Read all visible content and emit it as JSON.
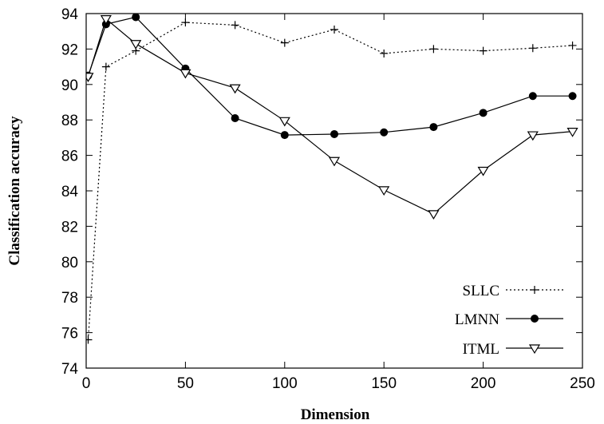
{
  "chart_data": {
    "type": "line",
    "title": "",
    "xlabel": "Dimension",
    "ylabel": "Classification accuracy",
    "xlim": [
      0,
      250
    ],
    "ylim": [
      74,
      94
    ],
    "xticks": [
      0,
      50,
      100,
      150,
      200,
      250
    ],
    "yticks": [
      74,
      76,
      78,
      80,
      82,
      84,
      86,
      88,
      90,
      92,
      94
    ],
    "grid": false,
    "legend_position": "bottom-right",
    "series": [
      {
        "name": "SLLC",
        "style": "dotted",
        "marker": "plus",
        "x": [
          1,
          10,
          25,
          50,
          75,
          100,
          125,
          150,
          175,
          200,
          225,
          245
        ],
        "y": [
          75.6,
          91.0,
          91.9,
          93.5,
          93.35,
          92.35,
          93.1,
          91.75,
          92.0,
          91.9,
          92.05,
          92.2
        ]
      },
      {
        "name": "LMNN",
        "style": "solid",
        "marker": "filled-circle",
        "x": [
          1,
          10,
          25,
          50,
          75,
          100,
          125,
          150,
          175,
          200,
          225,
          245
        ],
        "y": [
          90.5,
          93.4,
          93.8,
          90.9,
          88.1,
          87.15,
          87.2,
          87.3,
          87.6,
          88.4,
          89.35,
          89.35
        ]
      },
      {
        "name": "ITML",
        "style": "solid",
        "marker": "open-triangle-down",
        "x": [
          1,
          10,
          25,
          50,
          75,
          100,
          125,
          150,
          175,
          200,
          225,
          245
        ],
        "y": [
          90.45,
          93.7,
          92.3,
          90.65,
          89.8,
          87.95,
          85.7,
          84.05,
          82.7,
          85.15,
          87.15,
          87.35
        ]
      }
    ]
  }
}
